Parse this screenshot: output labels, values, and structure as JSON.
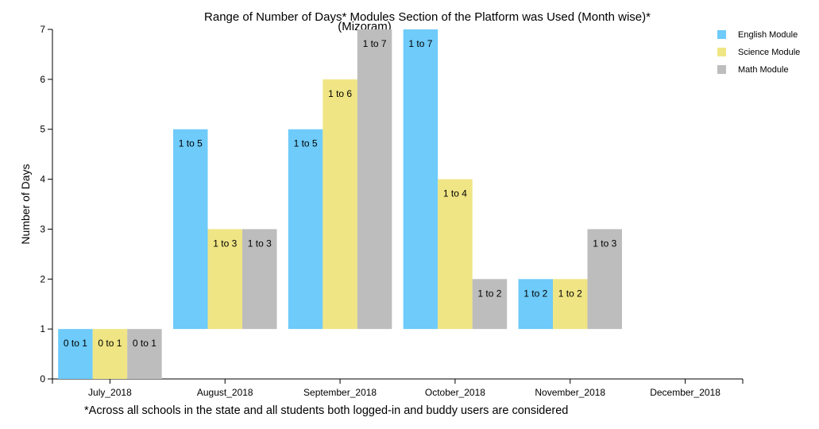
{
  "chart_data": {
    "type": "bar",
    "title": "Range of Number of Days* Modules Section of the Platform was Used (Month wise)*",
    "subtitle": "(Mizoram)",
    "xlabel": "",
    "ylabel": "Number of Days",
    "ylim": [
      0,
      7
    ],
    "y_ticks": [
      "0",
      "1",
      "2",
      "3",
      "4",
      "5",
      "6",
      "7"
    ],
    "categories": [
      "July_2018",
      "August_2018",
      "September_2018",
      "October_2018",
      "November_2018",
      "December_2018"
    ],
    "series": [
      {
        "name": "English Module",
        "color": "#6ecbfa",
        "ranges": [
          [
            0,
            1
          ],
          [
            1,
            5
          ],
          [
            1,
            5
          ],
          [
            1,
            7
          ],
          [
            1,
            2
          ],
          null
        ],
        "labels": [
          "0 to 1",
          "1 to 5",
          "1 to 5",
          "1 to 7",
          "1 to 2",
          ""
        ]
      },
      {
        "name": "Science Module",
        "color": "#f0e584",
        "ranges": [
          [
            0,
            1
          ],
          [
            1,
            3
          ],
          [
            1,
            6
          ],
          [
            1,
            4
          ],
          [
            1,
            2
          ],
          null
        ],
        "labels": [
          "0 to 1",
          "1 to 3",
          "1 to 6",
          "1 to 4",
          "1 to 2",
          ""
        ]
      },
      {
        "name": "Math Module",
        "color": "#bdbdbd",
        "ranges": [
          [
            0,
            1
          ],
          [
            1,
            3
          ],
          [
            1,
            7
          ],
          [
            1,
            2
          ],
          [
            1,
            3
          ],
          null
        ],
        "labels": [
          "0 to 1",
          "1 to 3",
          "1 to 7",
          "1 to 2",
          "1 to 3",
          ""
        ]
      }
    ],
    "legend_position": "top-right",
    "grid": false,
    "footnote": "*Across all schools in the state and all students both logged-in and buddy users are considered"
  }
}
